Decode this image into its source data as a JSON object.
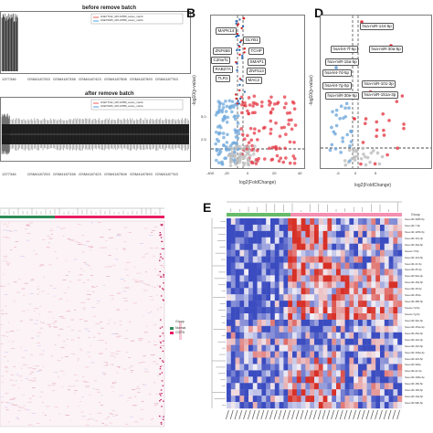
{
  "panelA": {
    "title_top": "before remove batch",
    "title_bottom": "after remove batch",
    "legend": [
      "GSE77192_GPL10558_series_matrix",
      "GSE76925_GPL10558_series_matrix"
    ],
    "ticks": [
      "1377346",
      "GSM4187253",
      "GSM4187338",
      "GSM4187423",
      "GSM4187508",
      "GSM4187593",
      "GSM4187763"
    ]
  },
  "panelB": {
    "label": "B",
    "xlabel": "log2(FoldChange)",
    "ylabel": "-log10(p-value)",
    "xticks": [
      "-400",
      "-20",
      "0",
      "20",
      "40"
    ],
    "yticks": [
      "5.0",
      "2.5"
    ],
    "genes": [
      "MAPK14",
      "GLYB1",
      "ZNF658",
      "TCHP",
      "C20orf1",
      "SMAP1",
      "RAB27A",
      "ZNF513",
      "TLR1",
      "MAC2"
    ]
  },
  "panelC": {
    "legend": [
      "Group",
      "Normal",
      "COPD"
    ],
    "legend_colors": [
      "#2e8b57",
      "#e91e63"
    ]
  },
  "panelD": {
    "label": "D",
    "xlabel": "log2(FoldChange)",
    "ylabel": "-log10(p-value)",
    "xticks": [
      "-5",
      "0",
      "5"
    ],
    "mirnas": [
      "hsa-miR-144-5p",
      "hsa-let-7f-5p",
      "hsa-miR-30a-5p",
      "hsa-miR-15a-5p",
      "hsa-let-7d-5p",
      "hsa-miR-101-3p",
      "hsa-let-7g-5p",
      "hsa-miR-30e-5p",
      "hsa-miR-151a-3p"
    ]
  },
  "panelE": {
    "label": "E",
    "legend_title": "Group",
    "rows": [
      "hsa-miR-3065-5p",
      "hsa-miR-7-5p",
      "hsa-miR-125b-5p",
      "hsa-miR-101-3p",
      "hsa-miR-30a-5p",
      "hsa-let-7f-5p",
      "hsa-miR-144-5p",
      "hsa-miR-21-5p",
      "hsa-miR-25-3p",
      "hsa-miR-92a-3p",
      "hsa-miR-15a-5p",
      "hsa-miR-16-5p",
      "hsa-miR-451a",
      "hsa-miR-486-5p",
      "hsa-let-7d-5p",
      "hsa-let-7g-5p",
      "hsa-miR-30e-5p",
      "hsa-miR-151a-3p",
      "hsa-miR-26a-5p",
      "hsa-miR-142-3p",
      "hsa-miR-191-5p",
      "hsa-miR-103a-3p",
      "hsa-miR-423-5p",
      "hsa-miR-320a",
      "hsa-miR-22-3p",
      "hsa-miR-148a-3p",
      "hsa-miR-182-5p",
      "hsa-miR-183-5p",
      "hsa-miR-10a-5p",
      "hsa-miR-99b-5p"
    ],
    "colors": {
      "low": "#3b4cc0",
      "mid": "#f2f0f7",
      "high": "#d73027"
    }
  }
}
